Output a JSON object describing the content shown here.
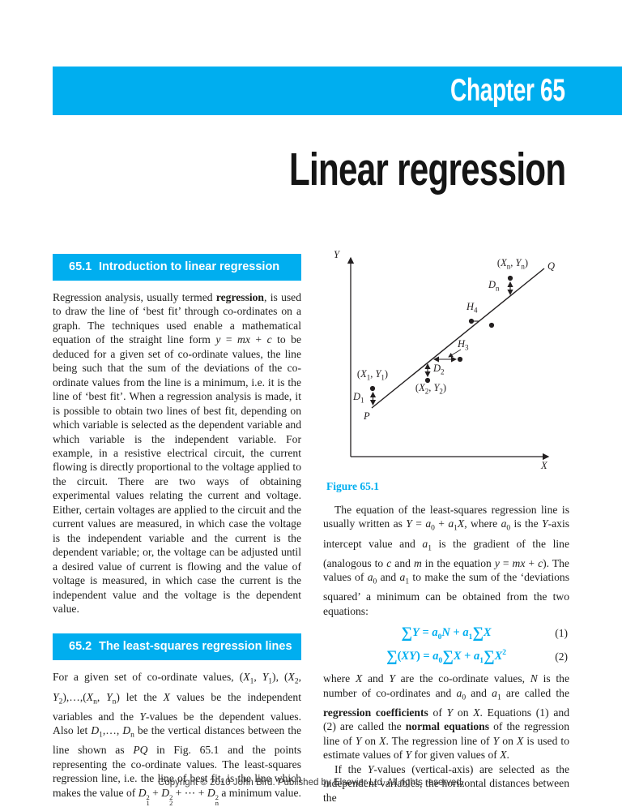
{
  "colors": {
    "accent": "#00AEEF"
  },
  "banner": {
    "chapter": "Chapter 65"
  },
  "title": "Linear regression",
  "sections": {
    "s1": {
      "number": "65.1",
      "title": "Introduction to linear regression",
      "body_html": "Regression analysis, usually termed <b>regression</b>, is used to draw the line of ‘best fit’ through co-ordinates on a graph. The techniques used enable a mathematical equation of the straight line form <i>y</i> = <i>mx</i> + <i>c</i> to be deduced for a given set of co-ordinate values, the line being such that the sum of the deviations of the co-ordinate values from the line is a minimum, i.e. it is the line of ‘best fit’. When a regression analysis is made, it is possible to obtain two lines of best fit, depending on which variable is selected as the dependent variable and which variable is the independent variable. For example, in a resistive electrical circuit, the current flowing is directly proportional to the voltage applied to the circuit. There are two ways of obtaining experimental values relating the current and voltage. Either, certain voltages are applied to the circuit and the current values are measured, in which case the voltage is the independent variable and the current is the dependent variable; or, the voltage can be adjusted until a desired value of current is flowing and the value of voltage is measured, in which case the current is the independent value and the voltage is the dependent value."
    },
    "s2": {
      "number": "65.2",
      "title": "The least-squares regression lines",
      "body_html": "For a given set of co-ordinate values, (<i>X</i><sub>1</sub>, <i>Y</i><sub>1</sub>), (<i>X</i><sub>2</sub>, <i>Y</i><sub>2</sub>),…,(<i>X</i><sub>n</sub>, <i>Y</i><sub>n</sub>) let the <i>X</i> values be the independent variables and the <i>Y</i>-values be the dependent values. Also let <i>D</i><sub>1</sub>,…, <i>D</i><sub>n</sub> be the vertical distances between the line shown as <i>PQ</i> in Fig. 65.1 and the points representing the co-ordinate values. The least-squares regression line, i.e. the line of best fit, is the line which makes the value of <i>D</i><span class='ss'><span>2</span><span>1</span></span> + <i>D</i><span class='ss'><span>2</span><span>2</span></span> + ⋯ + <i>D</i><span class='ss'><span>2</span><span>n</span></span> a minimum value."
    }
  },
  "right_column": {
    "para1_html": "The equation of the least-squares regression line is usually written as <i>Y</i> = <i>a</i><sub>0</sub> + <i>a</i><sub>1</sub><i>X</i>, where <i>a</i><sub>0</sub> is the <i>Y</i>-axis intercept value and <i>a</i><sub>1</sub> is the gradient of the line (analogous to <i>c</i> and <i>m</i> in the equation <i>y</i> = <i>mx</i> + <i>c</i>). The values of <i>a</i><sub>0</sub> and <i>a</i><sub>1</sub> to make the sum of the ‘deviations squared’ a minimum can be obtained from the two equations:",
    "equations": [
      {
        "expr_html": "<span class='sum'>∑</span><i>Y</i> = <i>a</i><sub>0</sub><i>N</i> + <i>a</i><sub>1</sub><span class='sum'>∑</span><i>X</i>",
        "number": "(1)"
      },
      {
        "expr_html": "<span class='sum'>∑</span>(<i>XY</i>) = <i>a</i><sub>0</sub><span class='sum'>∑</span><i>X</i> + <i>a</i><sub>1</sub><span class='sum'>∑</span><i>X</i><sup>2</sup>",
        "number": "(2)"
      }
    ],
    "para2_html": "where <i>X</i> and <i>Y</i> are the co-ordinate values, <i>N</i> is the number of co-ordinates and <i>a</i><sub>0</sub> and <i>a</i><sub>1</sub> are called the <b>regression coefficients</b> of <i>Y</i> on <i>X</i>. Equations (1) and (2) are called the <b>normal equations</b> of the regression line of <i>Y</i> on <i>X</i>. The regression line of <i>Y</i> on <i>X</i> is used to estimate values of <i>Y</i> for given values of <i>X</i>.",
    "para3_html": "If the <i>Y</i>-values (vertical-axis) are selected as the independent variables, the horizontal distances between the"
  },
  "figure": {
    "caption": "Figure 65.1",
    "labels": {
      "y_axis_html": "<i>Y</i>",
      "x_axis_html": "<i>X</i>",
      "p_html": "<i>P</i>",
      "q_html": "<i>Q</i>",
      "point1_html": "(<i>X</i><sub>1</sub>, <i>Y</i><sub>1</sub>)",
      "point2_html": "(<i>X</i><sub>2</sub>, <i>Y</i><sub>2</sub>)",
      "pointn_html": "(<i>X</i><sub>n</sub>, <i>Y</i><sub>n</sub>)",
      "d1_html": "<i>D</i><sub>1</sub>",
      "d2_html": "<i>D</i><sub>2</sub>",
      "dn_html": "<i>D</i><sub>n</sub>",
      "h3_html": "<i>H</i><sub>3</sub>",
      "h4_html": "<i>H</i><sub>4</sub>"
    }
  },
  "footer": "Copyright © 2010 John Bird. Published by Elsevier Ltd. All rights reserved."
}
